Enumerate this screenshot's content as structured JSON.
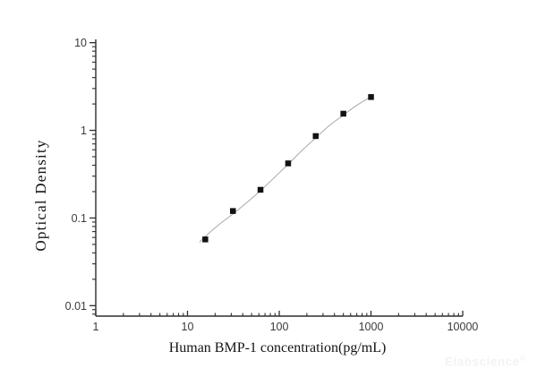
{
  "figure": {
    "background": "#ffffff",
    "watermark": {
      "text": "Elabscience",
      "registered_mark": "®",
      "color": "#f3f3f3"
    }
  },
  "chart_data": {
    "type": "scatter",
    "title": "",
    "xlabel": "Human BMP-1 concentration(pg/mL)",
    "ylabel": "Optical Density",
    "x_scale": "log",
    "y_scale": "log",
    "xlim": [
      1,
      10000
    ],
    "ylim": [
      0.0076,
      10.9
    ],
    "grid": false,
    "legend": null,
    "axis_color": "#2e2e2e",
    "tick_label_color": "#3a3a3a",
    "x_ticks": {
      "values": [
        1,
        10,
        100,
        1000,
        10000
      ],
      "labels": [
        "1",
        "10",
        "100",
        "1000",
        "10000"
      ]
    },
    "y_ticks": {
      "values": [
        0.01,
        0.1,
        1,
        10
      ],
      "labels": [
        "0.01",
        "0.1",
        "1",
        "10"
      ]
    },
    "series": [
      {
        "name": "standard-points",
        "marker": "filled-square",
        "marker_color": "#121212",
        "marker_size_px": 6.5,
        "x": [
          15.625,
          31.25,
          62.5,
          125,
          250,
          500,
          1000
        ],
        "y": [
          0.057,
          0.12,
          0.21,
          0.42,
          0.86,
          1.55,
          2.4
        ]
      }
    ],
    "fit_curve": {
      "name": "4pl-fit-curve",
      "color": "#a8a8a8",
      "points": [
        [
          13.5,
          0.053
        ],
        [
          15.6,
          0.0615
        ],
        [
          22,
          0.084
        ],
        [
          31.5,
          0.112
        ],
        [
          45,
          0.152
        ],
        [
          62.5,
          0.205
        ],
        [
          90,
          0.295
        ],
        [
          125,
          0.41
        ],
        [
          180,
          0.6
        ],
        [
          250,
          0.82
        ],
        [
          350,
          1.13
        ],
        [
          490,
          1.47
        ],
        [
          700,
          1.93
        ],
        [
          1000,
          2.42
        ]
      ]
    }
  }
}
